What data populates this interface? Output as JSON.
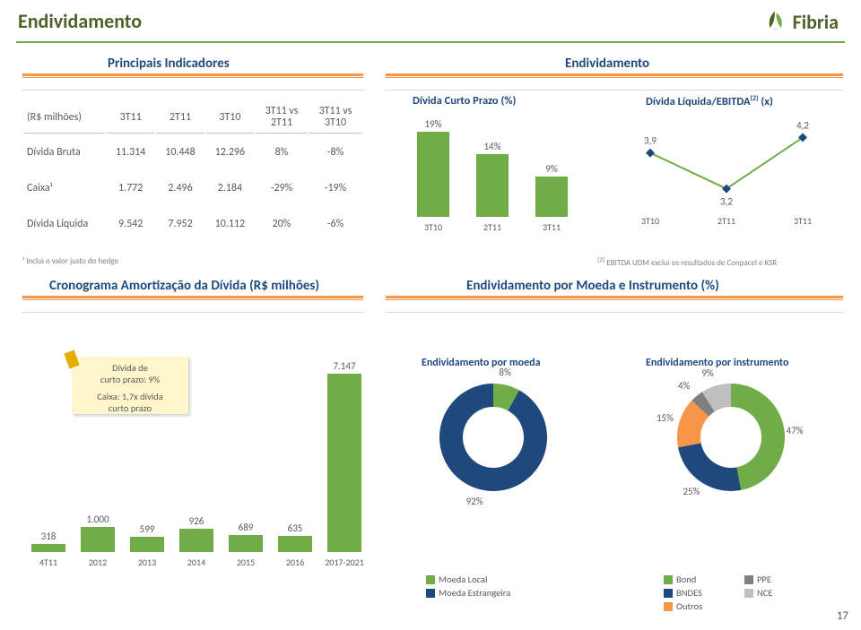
{
  "page": {
    "title": "Endividamento",
    "number": "17"
  },
  "logo": {
    "text": "Fibria",
    "leaf_colors": [
      "#4f6228",
      "#70ad47",
      "#a9d08e"
    ]
  },
  "sections": {
    "indicadores": "Principais Indicadores",
    "endiv": "Endividamento",
    "cronograma": "Cronograma Amortização da Dívida (R$ milhões)",
    "moeda": "Endividamento por Moeda e Instrumento (%)"
  },
  "table": {
    "headers": [
      "(R$ milhões)",
      "3T11",
      "2T11",
      "3T10",
      "3T11 vs 2T11",
      "3T11 vs 3T10"
    ],
    "rows": [
      [
        "Dívida Bruta",
        "11.314",
        "10.448",
        "12.296",
        "8%",
        "-8%"
      ],
      [
        "Caixa¹",
        "1.772",
        "2.496",
        "2.184",
        "-29%",
        "-19%"
      ],
      [
        "Dívida Líquida",
        "9.542",
        "7.952",
        "10.112",
        "20%",
        "-6%"
      ]
    ],
    "footnote_left": "¹ Inclui o valor justo do hedge",
    "footnote_right": "(2) EBITDA UDM exclui os resultados de Conpacel e KSR"
  },
  "charts": {
    "curto_prazo": {
      "title": "Dívida Curto Prazo (%)",
      "categories": [
        "3T10",
        "2T11",
        "3T11"
      ],
      "values": [
        19,
        14,
        9
      ],
      "labels": [
        "19%",
        "14%",
        "9%"
      ],
      "bar_color": "#70ad47",
      "y_max": 20
    },
    "divida_liq": {
      "title": "Dívida Líquida/EBITDA",
      "title_sup": "(2)",
      "title_suffix": " (x)",
      "categories": [
        "3T10",
        "2T11",
        "3T11"
      ],
      "values": [
        3.9,
        3.2,
        4.2
      ],
      "labels": [
        "3,9",
        "3,2",
        "4,2"
      ],
      "line_color": "#70ad47",
      "marker_color": "#1f497d",
      "y_min": 3.0,
      "y_max": 4.4
    },
    "cronograma": {
      "sticky1_l1": "Dívida de",
      "sticky1_l2": "curto prazo: 9%",
      "sticky2_l1": "Caixa: 1,7x dívida",
      "sticky2_l2": "curto prazo",
      "categories": [
        "4T11",
        "2012",
        "2013",
        "2014",
        "2015",
        "2016",
        "2017-2021"
      ],
      "values": [
        318,
        1000,
        599,
        926,
        689,
        635,
        7147
      ],
      "labels": [
        "318",
        "1.000",
        "599",
        "926",
        "689",
        "635",
        "7.147"
      ],
      "bar_color": "#70ad47",
      "y_max": 7200
    },
    "donut_moeda": {
      "title": "Endividamento por moeda",
      "slices": [
        {
          "label": "Moeda Local",
          "value": 8,
          "color": "#70ad47",
          "text": "8%"
        },
        {
          "label": "Moeda Estrangeira",
          "value": 92,
          "color": "#1f497d",
          "text": "92%"
        }
      ]
    },
    "donut_instr": {
      "title": "Endividamento por instrumento",
      "slices": [
        {
          "label": "Bond",
          "value": 47,
          "color": "#70ad47",
          "text": "47%"
        },
        {
          "label": "BNDES",
          "value": 25,
          "color": "#1f497d",
          "text": "25%"
        },
        {
          "label": "Outros",
          "value": 15,
          "color": "#f79646",
          "text": "15%"
        },
        {
          "label": "PPE",
          "value": 4,
          "color": "#7f7f7f",
          "text": "4%"
        },
        {
          "label": "NCE",
          "value": 9,
          "color": "#bfbfbf",
          "text": "9%"
        }
      ],
      "legend_left": [
        {
          "label": "Bond",
          "color": "#70ad47"
        },
        {
          "label": "BNDES",
          "color": "#1f497d"
        },
        {
          "label": "Outros",
          "color": "#f79646"
        }
      ],
      "legend_right": [
        {
          "label": "PPE",
          "color": "#7f7f7f"
        },
        {
          "label": "NCE",
          "color": "#bfbfbf"
        }
      ],
      "legend_local": [
        {
          "label": "Moeda Local",
          "color": "#70ad47"
        },
        {
          "label": "Moeda Estrangeira",
          "color": "#1f497d"
        }
      ]
    }
  }
}
